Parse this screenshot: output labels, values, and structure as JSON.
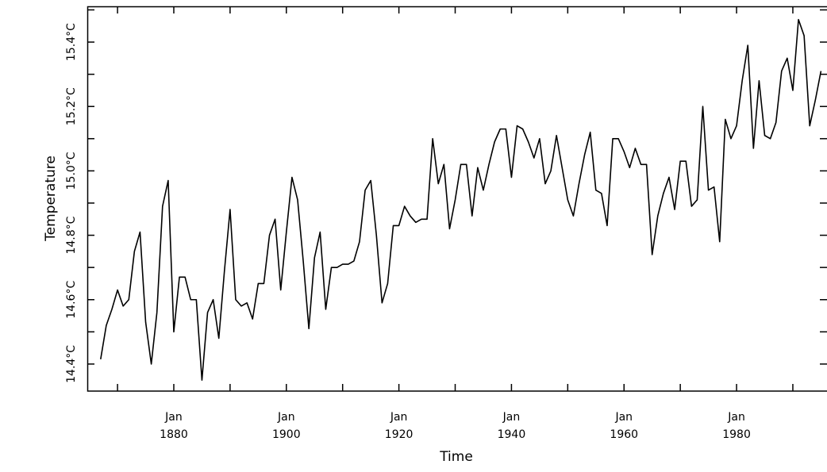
{
  "chart_data": {
    "type": "line",
    "x_label": "Time",
    "y_label": "Temperature",
    "x": [
      1867,
      1868,
      1869,
      1870,
      1871,
      1872,
      1873,
      1874,
      1875,
      1876,
      1877,
      1878,
      1879,
      1880,
      1881,
      1882,
      1883,
      1884,
      1885,
      1886,
      1887,
      1888,
      1889,
      1890,
      1891,
      1892,
      1893,
      1894,
      1895,
      1896,
      1897,
      1898,
      1899,
      1900,
      1901,
      1902,
      1903,
      1904,
      1905,
      1906,
      1907,
      1908,
      1909,
      1910,
      1911,
      1912,
      1913,
      1914,
      1915,
      1916,
      1917,
      1918,
      1919,
      1920,
      1921,
      1922,
      1923,
      1924,
      1925,
      1926,
      1927,
      1928,
      1929,
      1930,
      1931,
      1932,
      1933,
      1934,
      1935,
      1936,
      1937,
      1938,
      1939,
      1940,
      1941,
      1942,
      1943,
      1944,
      1945,
      1946,
      1947,
      1948,
      1949,
      1950,
      1951,
      1952,
      1953,
      1954,
      1955,
      1956,
      1957,
      1958,
      1959,
      1960,
      1961,
      1962,
      1963,
      1964,
      1965,
      1966,
      1967,
      1968,
      1969,
      1970,
      1971,
      1972,
      1973,
      1974,
      1975,
      1976,
      1977,
      1978,
      1979,
      1980,
      1981,
      1982,
      1983,
      1984,
      1985,
      1986,
      1987,
      1988,
      1989,
      1990,
      1991,
      1992,
      1993,
      1994,
      1995
    ],
    "series": [
      {
        "color": "#000000",
        "values": [
          14.415,
          14.52,
          14.57,
          14.63,
          14.58,
          14.6,
          14.75,
          14.81,
          14.53,
          14.4,
          14.56,
          14.89,
          14.97,
          14.5,
          14.67,
          14.67,
          14.6,
          14.6,
          14.35,
          14.56,
          14.6,
          14.48,
          14.69,
          14.88,
          14.6,
          14.58,
          14.59,
          14.54,
          14.65,
          14.65,
          14.8,
          14.85,
          14.63,
          14.81,
          14.98,
          14.91,
          14.72,
          14.51,
          14.73,
          14.81,
          14.57,
          14.7,
          14.7,
          14.71,
          14.71,
          14.72,
          14.78,
          14.94,
          14.97,
          14.8,
          14.59,
          14.65,
          14.83,
          14.83,
          14.89,
          14.86,
          14.84,
          14.85,
          14.85,
          15.1,
          14.96,
          15.02,
          14.82,
          14.91,
          15.02,
          15.02,
          14.86,
          15.01,
          14.94,
          15.02,
          15.09,
          15.13,
          15.13,
          14.98,
          15.14,
          15.13,
          15.09,
          15.04,
          15.1,
          14.96,
          15.0,
          15.11,
          15.01,
          14.91,
          14.86,
          14.96,
          15.05,
          15.12,
          14.94,
          14.93,
          14.83,
          15.1,
          15.1,
          15.06,
          15.01,
          15.07,
          15.02,
          15.02,
          14.74,
          14.86,
          14.93,
          14.98,
          14.88,
          15.03,
          15.03,
          14.89,
          14.91,
          15.2,
          14.94,
          14.95,
          14.78,
          15.16,
          15.1,
          15.14,
          15.28,
          15.39,
          15.07,
          15.28,
          15.11,
          15.1,
          15.15,
          15.31,
          15.35,
          15.25,
          15.47,
          15.42,
          15.14,
          15.22,
          15.31
        ]
      }
    ],
    "xlim": [
      1864.63,
      1996.07
    ],
    "xticks": [
      {
        "value": 1880,
        "label": "Jan 1880"
      },
      {
        "value": 1900,
        "label": "Jan 1900"
      },
      {
        "value": 1920,
        "label": "Jan 1920"
      },
      {
        "value": 1940,
        "label": "Jan 1940"
      },
      {
        "value": 1960,
        "label": "Jan 1960"
      },
      {
        "value": 1980,
        "label": "Jan 1980"
      }
    ],
    "xminor_ticks": [
      1870,
      1890,
      1910,
      1930,
      1950,
      1970,
      1990
    ],
    "ylim": [
      14.316,
      15.511
    ],
    "yticks": [
      {
        "value": 14.4,
        "label": "14.4°C"
      },
      {
        "value": 14.6,
        "label": "14.6°C"
      },
      {
        "value": 14.8,
        "label": "14.8°C"
      },
      {
        "value": 15.0,
        "label": "15.0°C"
      },
      {
        "value": 15.2,
        "label": "15.2°C"
      },
      {
        "value": 15.4,
        "label": "15.4°C"
      }
    ],
    "yminor_ticks": [
      14.5,
      14.7,
      14.9,
      15.1,
      15.3,
      15.5
    ],
    "grid": false
  }
}
